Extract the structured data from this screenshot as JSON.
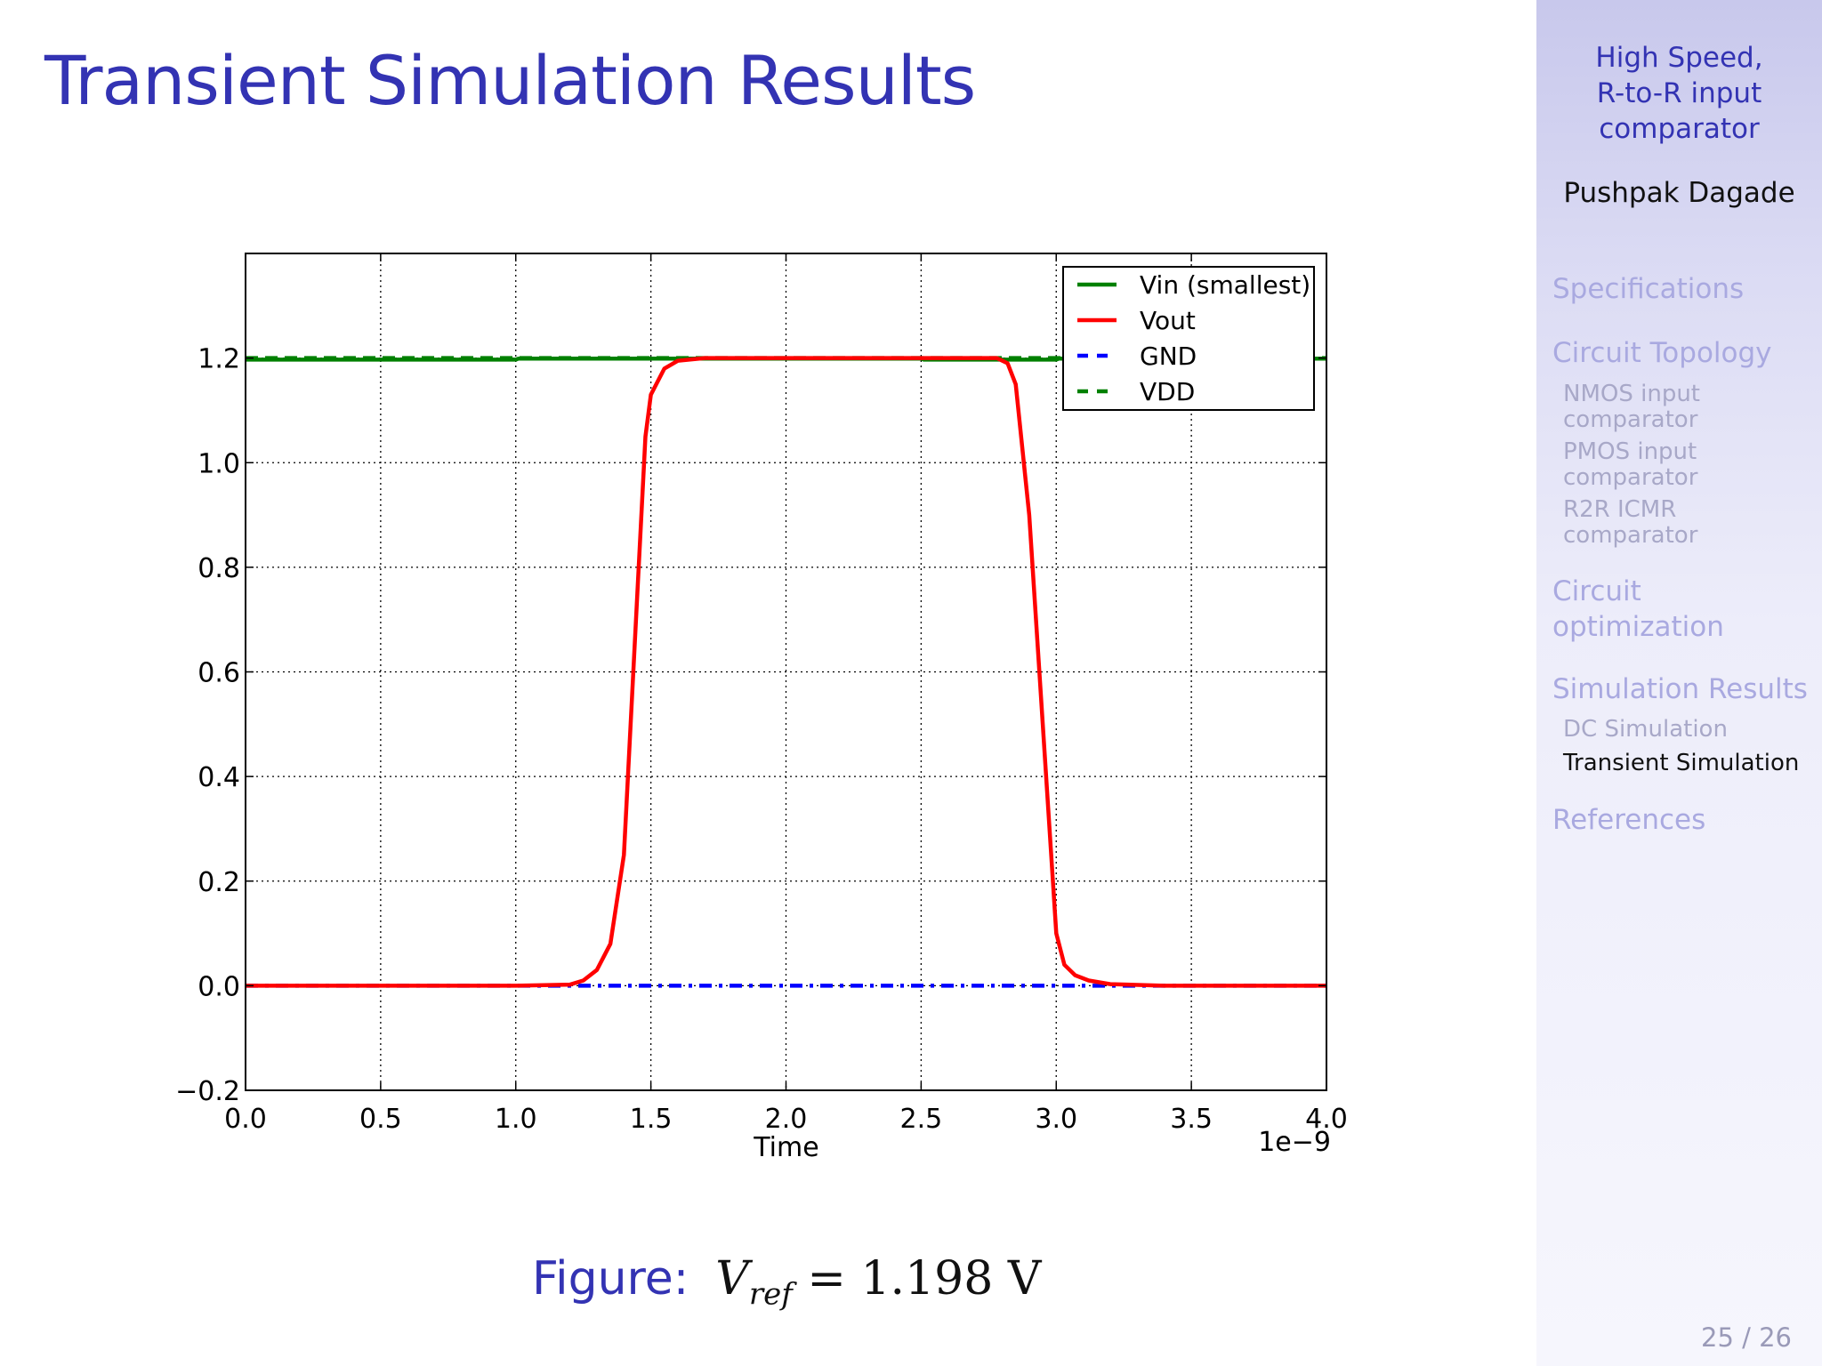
{
  "slide": {
    "title": "Transient Simulation Results",
    "page_number": "25 / 26"
  },
  "sidebar": {
    "title_lines": [
      "High Speed,",
      "R-to-R input",
      "comparator"
    ],
    "author": "Pushpak Dagade",
    "sections": [
      {
        "label": "Specifications"
      },
      {
        "label": "Circuit Topology",
        "subsections": [
          {
            "lines": [
              "NMOS input",
              "comparator"
            ]
          },
          {
            "lines": [
              "PMOS input",
              "comparator"
            ]
          },
          {
            "lines": [
              "R2R ICMR",
              "comparator"
            ]
          }
        ]
      },
      {
        "lines": [
          "Circuit",
          "optimization"
        ]
      },
      {
        "label": "Simulation Results",
        "subsections": [
          {
            "lines": [
              "DC Simulation"
            ]
          },
          {
            "lines": [
              "Transient Simulation"
            ],
            "active": true
          }
        ]
      },
      {
        "label": "References"
      }
    ]
  },
  "caption": {
    "label": "Figure:",
    "var": "V",
    "sub": "ref",
    "rest": " = 1.198 V"
  },
  "colors": {
    "title": "#3333b3",
    "vin": "#008000",
    "vout": "#ff0000",
    "gnd": "#0000ff",
    "vdd": "#008000"
  },
  "chart_data": {
    "type": "line",
    "xlabel": "Time",
    "ylabel": "",
    "x_offset_text": "1e−9",
    "xlim": [
      0.0,
      4.0
    ],
    "ylim": [
      -0.2,
      1.4
    ],
    "xticks": [
      "0.0",
      "0.5",
      "1.0",
      "1.5",
      "2.0",
      "2.5",
      "3.0",
      "3.5",
      "4.0"
    ],
    "yticks": [
      "−0.2",
      "0.0",
      "0.2",
      "0.4",
      "0.6",
      "0.8",
      "1.0",
      "1.2"
    ],
    "grid": true,
    "legend_position": "top-right",
    "series": [
      {
        "name": "Vin (smallest)",
        "style": "solid",
        "x": [
          0.0,
          1.0,
          1.01,
          2.5,
          2.51,
          3.0,
          3.01,
          4.0
        ],
        "y": [
          1.197,
          1.197,
          1.199,
          1.199,
          1.197,
          1.197,
          1.199,
          1.199
        ]
      },
      {
        "name": "Vout",
        "style": "solid",
        "x": [
          0.0,
          1.0,
          1.2,
          1.25,
          1.3,
          1.35,
          1.4,
          1.45,
          1.48,
          1.5,
          1.55,
          1.6,
          1.7,
          1.8,
          2.0,
          2.5,
          2.78,
          2.82,
          2.85,
          2.9,
          2.95,
          3.0,
          3.03,
          3.07,
          3.12,
          3.2,
          3.4,
          4.0
        ],
        "y": [
          0.0,
          0.0,
          0.002,
          0.01,
          0.03,
          0.08,
          0.25,
          0.75,
          1.05,
          1.13,
          1.18,
          1.195,
          1.2,
          1.2,
          1.2,
          1.2,
          1.2,
          1.19,
          1.15,
          0.9,
          0.5,
          0.1,
          0.04,
          0.02,
          0.01,
          0.003,
          0.0,
          0.0
        ]
      },
      {
        "name": "GND",
        "style": "dashdot",
        "x": [
          0.0,
          4.0
        ],
        "y": [
          0.0,
          0.0
        ]
      },
      {
        "name": "VDD",
        "style": "dashed",
        "x": [
          0.0,
          4.0
        ],
        "y": [
          1.2,
          1.2
        ]
      }
    ]
  }
}
